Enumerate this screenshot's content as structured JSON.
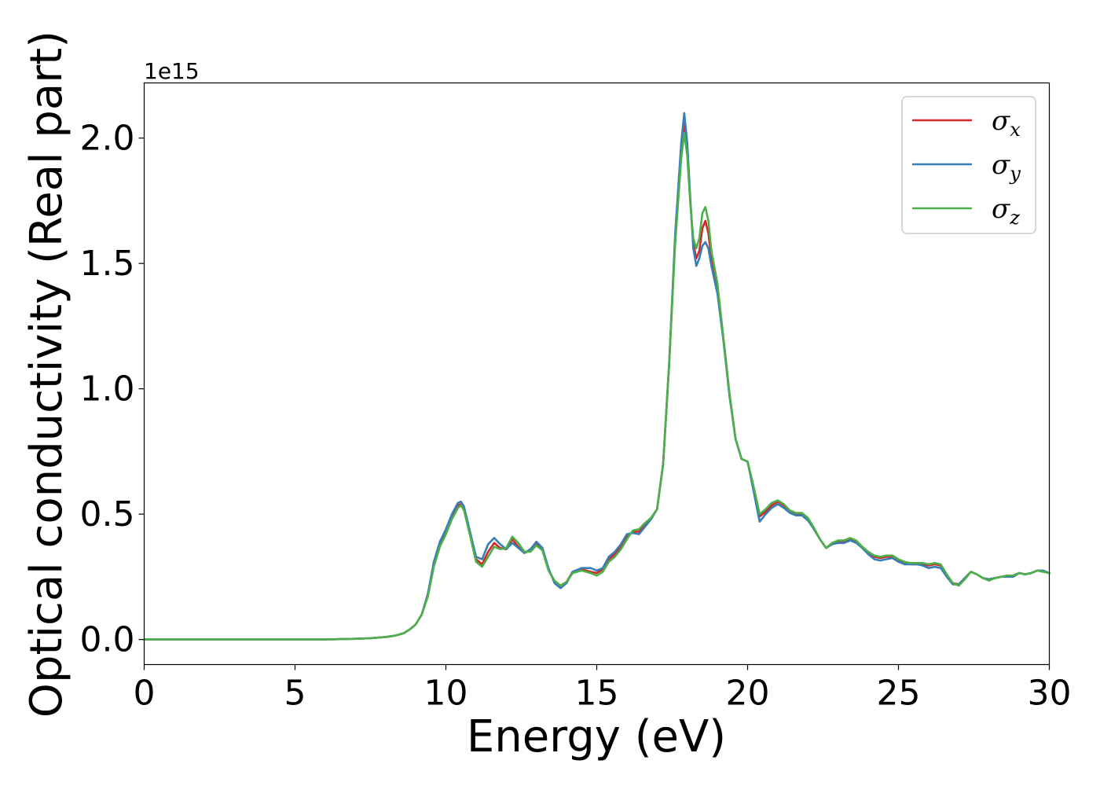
{
  "chart_data": {
    "type": "line",
    "xlabel": "Energy (eV)",
    "ylabel": "Optical conductivity (Real part)",
    "y_offset_text": "1e15",
    "xlim": [
      0,
      30
    ],
    "ylim": [
      -0.1,
      2.22
    ],
    "y_scale_factor": 1000000000000000.0,
    "xticks": [
      0,
      5,
      10,
      15,
      20,
      25,
      30
    ],
    "xtick_labels": [
      "0",
      "5",
      "10",
      "15",
      "20",
      "25",
      "30"
    ],
    "yticks": [
      0.0,
      0.5,
      1.0,
      1.5,
      2.0
    ],
    "ytick_labels": [
      "0.0",
      "0.5",
      "1.0",
      "1.5",
      "2.0"
    ],
    "grid": false,
    "legend_position": "upper right",
    "x": [
      0,
      1,
      2,
      3,
      4,
      5,
      6,
      7,
      7.5,
      8,
      8.3,
      8.6,
      8.8,
      9.0,
      9.2,
      9.4,
      9.6,
      9.8,
      10.0,
      10.2,
      10.4,
      10.5,
      10.6,
      10.8,
      11.0,
      11.2,
      11.4,
      11.6,
      11.8,
      12.0,
      12.2,
      12.4,
      12.6,
      12.8,
      13.0,
      13.2,
      13.4,
      13.6,
      13.8,
      14.0,
      14.2,
      14.5,
      14.8,
      15.0,
      15.2,
      15.4,
      15.6,
      15.8,
      16.0,
      16.2,
      16.4,
      16.6,
      16.8,
      17.0,
      17.2,
      17.4,
      17.6,
      17.8,
      17.9,
      18.0,
      18.1,
      18.2,
      18.3,
      18.4,
      18.5,
      18.6,
      18.7,
      18.8,
      19.0,
      19.2,
      19.4,
      19.6,
      19.8,
      20.0,
      20.2,
      20.4,
      20.6,
      20.8,
      21.0,
      21.2,
      21.4,
      21.6,
      21.8,
      22.0,
      22.2,
      22.4,
      22.6,
      22.8,
      23.0,
      23.2,
      23.4,
      23.6,
      23.8,
      24.0,
      24.2,
      24.4,
      24.6,
      24.8,
      25.0,
      25.2,
      25.4,
      25.6,
      25.8,
      26.0,
      26.2,
      26.4,
      26.6,
      26.8,
      27.0,
      27.2,
      27.4,
      27.6,
      27.8,
      28.0,
      28.2,
      28.4,
      28.6,
      28.8,
      29.0,
      29.2,
      29.4,
      29.6,
      29.8,
      30.0
    ],
    "series": [
      {
        "name": "σx",
        "color": "#d62728",
        "values": [
          0,
          0,
          0,
          0,
          0,
          0,
          0,
          0.003,
          0.005,
          0.01,
          0.015,
          0.025,
          0.04,
          0.06,
          0.1,
          0.18,
          0.3,
          0.38,
          0.43,
          0.49,
          0.535,
          0.54,
          0.52,
          0.42,
          0.32,
          0.3,
          0.35,
          0.385,
          0.365,
          0.36,
          0.4,
          0.37,
          0.345,
          0.355,
          0.38,
          0.36,
          0.28,
          0.23,
          0.21,
          0.23,
          0.27,
          0.28,
          0.27,
          0.265,
          0.28,
          0.32,
          0.34,
          0.37,
          0.41,
          0.43,
          0.43,
          0.46,
          0.48,
          0.52,
          0.7,
          1.1,
          1.6,
          1.95,
          2.06,
          1.95,
          1.75,
          1.58,
          1.52,
          1.55,
          1.64,
          1.67,
          1.62,
          1.52,
          1.4,
          1.2,
          0.98,
          0.8,
          0.72,
          0.71,
          0.6,
          0.49,
          0.51,
          0.535,
          0.55,
          0.535,
          0.51,
          0.5,
          0.5,
          0.48,
          0.44,
          0.4,
          0.365,
          0.38,
          0.39,
          0.39,
          0.4,
          0.39,
          0.37,
          0.345,
          0.33,
          0.325,
          0.33,
          0.33,
          0.315,
          0.305,
          0.3,
          0.3,
          0.3,
          0.295,
          0.3,
          0.295,
          0.255,
          0.225,
          0.22,
          0.245,
          0.27,
          0.26,
          0.245,
          0.24,
          0.245,
          0.25,
          0.255,
          0.255,
          0.265,
          0.26,
          0.265,
          0.275,
          0.27,
          0.265
        ]
      },
      {
        "name": "σy",
        "color": "#377eb8",
        "values": [
          0,
          0,
          0,
          0,
          0,
          0,
          0,
          0.003,
          0.005,
          0.01,
          0.015,
          0.025,
          0.04,
          0.06,
          0.1,
          0.18,
          0.31,
          0.39,
          0.44,
          0.5,
          0.545,
          0.55,
          0.53,
          0.43,
          0.33,
          0.32,
          0.38,
          0.405,
          0.38,
          0.36,
          0.385,
          0.365,
          0.345,
          0.36,
          0.39,
          0.365,
          0.285,
          0.225,
          0.205,
          0.225,
          0.27,
          0.285,
          0.285,
          0.275,
          0.285,
          0.33,
          0.35,
          0.38,
          0.42,
          0.425,
          0.42,
          0.45,
          0.48,
          0.52,
          0.7,
          1.1,
          1.62,
          1.98,
          2.1,
          1.98,
          1.76,
          1.56,
          1.49,
          1.52,
          1.57,
          1.585,
          1.56,
          1.49,
          1.38,
          1.19,
          0.97,
          0.8,
          0.72,
          0.71,
          0.59,
          0.47,
          0.5,
          0.525,
          0.54,
          0.525,
          0.505,
          0.495,
          0.495,
          0.475,
          0.44,
          0.4,
          0.365,
          0.38,
          0.385,
          0.385,
          0.395,
          0.385,
          0.365,
          0.34,
          0.32,
          0.315,
          0.32,
          0.325,
          0.31,
          0.3,
          0.3,
          0.3,
          0.295,
          0.285,
          0.29,
          0.285,
          0.25,
          0.22,
          0.22,
          0.245,
          0.27,
          0.26,
          0.245,
          0.24,
          0.245,
          0.25,
          0.25,
          0.25,
          0.265,
          0.26,
          0.265,
          0.275,
          0.275,
          0.265
        ]
      },
      {
        "name": "σz",
        "color": "#4daf4a",
        "values": [
          0,
          0,
          0,
          0,
          0,
          0,
          0,
          0.003,
          0.005,
          0.01,
          0.015,
          0.025,
          0.04,
          0.06,
          0.1,
          0.17,
          0.29,
          0.37,
          0.42,
          0.48,
          0.525,
          0.535,
          0.515,
          0.415,
          0.31,
          0.29,
          0.33,
          0.37,
          0.36,
          0.365,
          0.41,
          0.385,
          0.35,
          0.35,
          0.375,
          0.355,
          0.275,
          0.235,
          0.215,
          0.23,
          0.265,
          0.275,
          0.265,
          0.255,
          0.27,
          0.31,
          0.33,
          0.36,
          0.4,
          0.435,
          0.44,
          0.465,
          0.485,
          0.52,
          0.7,
          1.1,
          1.58,
          1.92,
          2.02,
          1.93,
          1.74,
          1.6,
          1.56,
          1.6,
          1.7,
          1.725,
          1.67,
          1.55,
          1.42,
          1.2,
          0.98,
          0.8,
          0.72,
          0.71,
          0.61,
          0.5,
          0.52,
          0.545,
          0.555,
          0.54,
          0.515,
          0.505,
          0.505,
          0.485,
          0.445,
          0.4,
          0.365,
          0.385,
          0.395,
          0.395,
          0.405,
          0.395,
          0.37,
          0.35,
          0.335,
          0.33,
          0.335,
          0.335,
          0.32,
          0.31,
          0.305,
          0.305,
          0.305,
          0.3,
          0.305,
          0.3,
          0.26,
          0.225,
          0.215,
          0.24,
          0.27,
          0.26,
          0.245,
          0.235,
          0.245,
          0.25,
          0.255,
          0.255,
          0.265,
          0.26,
          0.265,
          0.275,
          0.27,
          0.265
        ]
      }
    ]
  }
}
